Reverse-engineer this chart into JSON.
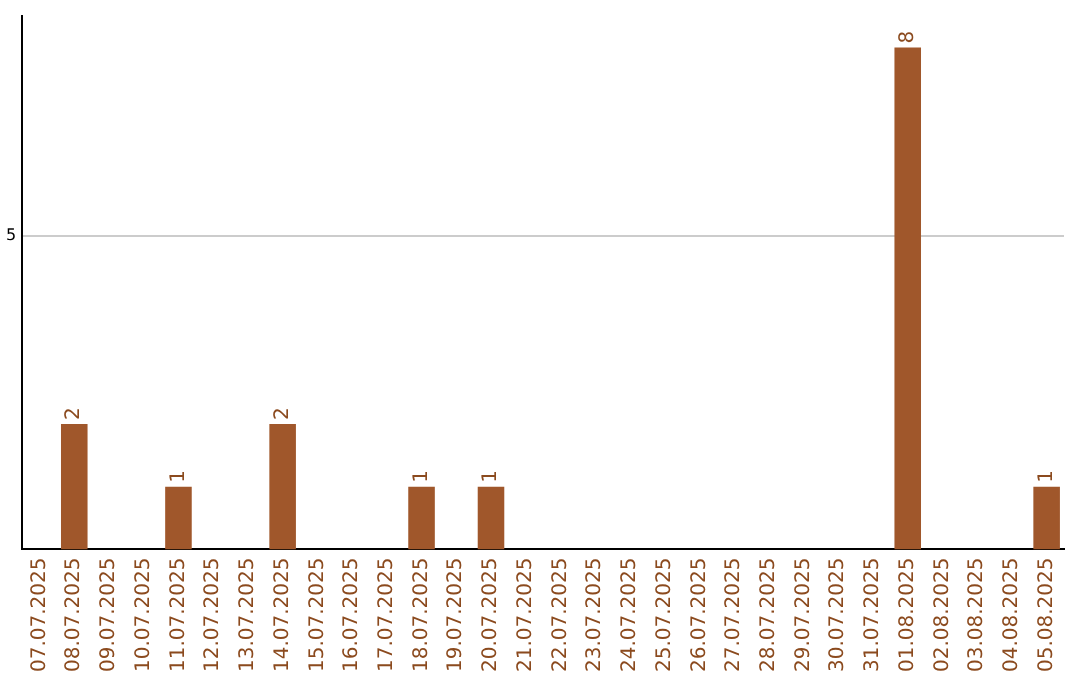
{
  "chart_data": {
    "type": "bar",
    "categories": [
      "07.07.2025",
      "08.07.2025",
      "09.07.2025",
      "10.07.2025",
      "11.07.2025",
      "12.07.2025",
      "13.07.2025",
      "14.07.2025",
      "15.07.2025",
      "16.07.2025",
      "17.07.2025",
      "18.07.2025",
      "19.07.2025",
      "20.07.2025",
      "21.07.2025",
      "22.07.2025",
      "23.07.2025",
      "24.07.2025",
      "25.07.2025",
      "26.07.2025",
      "27.07.2025",
      "28.07.2025",
      "29.07.2025",
      "30.07.2025",
      "31.07.2025",
      "01.08.2025",
      "02.08.2025",
      "03.08.2025",
      "04.08.2025",
      "05.08.2025"
    ],
    "values": [
      0,
      2,
      0,
      0,
      1,
      0,
      0,
      2,
      0,
      0,
      0,
      1,
      0,
      1,
      0,
      0,
      0,
      0,
      0,
      0,
      0,
      0,
      0,
      0,
      0,
      8,
      0,
      0,
      0,
      1
    ],
    "value_labels": [
      null,
      "2",
      null,
      null,
      "1",
      null,
      null,
      "2",
      null,
      null,
      null,
      "1",
      null,
      "1",
      null,
      null,
      null,
      null,
      null,
      null,
      null,
      null,
      null,
      null,
      null,
      "8",
      null,
      null,
      null,
      "1"
    ],
    "color": "#a0572b",
    "ylim": [
      0,
      8.5
    ],
    "yticks": [
      5
    ],
    "grid": "y"
  }
}
